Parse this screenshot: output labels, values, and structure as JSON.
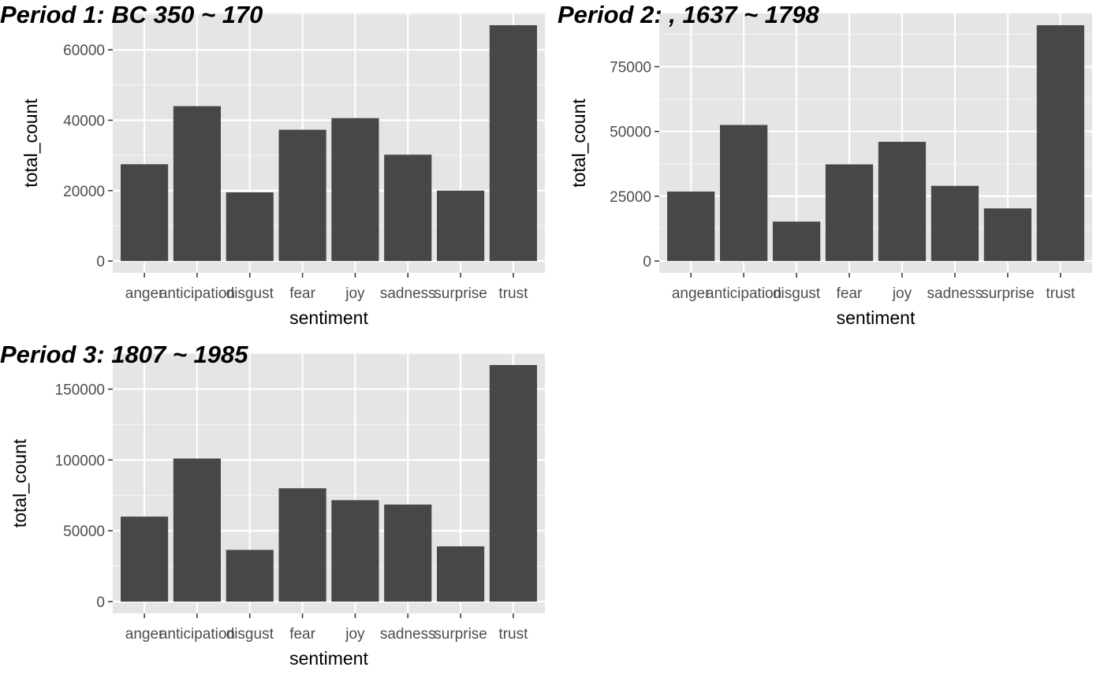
{
  "colors": {
    "panel_background": "#e5e5e5",
    "grid_major": "#ffffff",
    "grid_minor": "#f2f2f2",
    "bar_fill": "#474747",
    "tick_color": "#333333",
    "tick_text": "#4d4d4d"
  },
  "chart_data": [
    {
      "type": "bar",
      "title": "Period 1: BC 350 ~ 170",
      "xlabel": "sentiment",
      "ylabel": "total_count",
      "categories": [
        "anger",
        "anticipation",
        "disgust",
        "fear",
        "joy",
        "sadness",
        "surprise",
        "trust"
      ],
      "values": [
        27500,
        44000,
        19500,
        37300,
        40600,
        30200,
        20000,
        67000
      ],
      "yticks": [
        0,
        20000,
        40000,
        60000
      ],
      "ylim": [
        -3350,
        70350
      ],
      "grid": true,
      "legend": "none"
    },
    {
      "type": "bar",
      "title": "Period 2: , 1637 ~ 1798",
      "xlabel": "sentiment",
      "ylabel": "total_count",
      "categories": [
        "anger",
        "anticipation",
        "disgust",
        "fear",
        "joy",
        "sadness",
        "surprise",
        "trust"
      ],
      "values": [
        26800,
        52500,
        15200,
        37300,
        46000,
        29000,
        20300,
        91000
      ],
      "yticks": [
        0,
        25000,
        50000,
        75000
      ],
      "ylim": [
        -4550,
        95550
      ],
      "grid": true,
      "legend": "none"
    },
    {
      "type": "bar",
      "title": "Period 3: 1807 ~ 1985",
      "xlabel": "sentiment",
      "ylabel": "total_count",
      "categories": [
        "anger",
        "anticipation",
        "disgust",
        "fear",
        "joy",
        "sadness",
        "surprise",
        "trust"
      ],
      "values": [
        60000,
        101000,
        36500,
        80000,
        71600,
        68500,
        39000,
        167000
      ],
      "yticks": [
        0,
        50000,
        100000,
        150000
      ],
      "ylim": [
        -8350,
        175350
      ],
      "grid": true,
      "legend": "none"
    }
  ]
}
